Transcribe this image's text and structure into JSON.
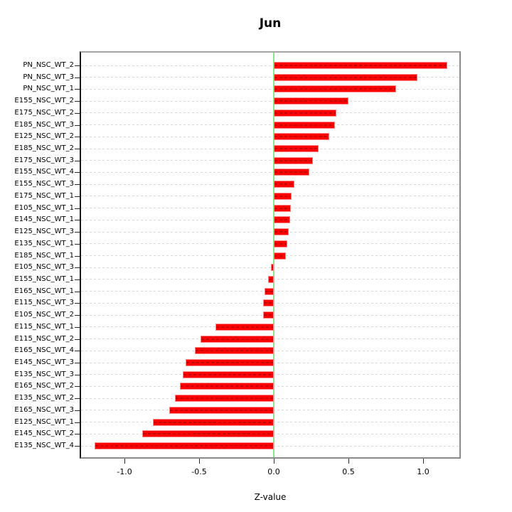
{
  "chart_data": {
    "type": "bar",
    "orientation": "horizontal",
    "title": "Jun",
    "xlabel": "Z-value",
    "ylabel": "",
    "xlim": [
      -1.3,
      1.25
    ],
    "xticks": [
      -1.0,
      -0.5,
      0.0,
      0.5,
      1.0
    ],
    "xtick_labels": [
      "-1.0",
      "-0.5",
      "0.0",
      "0.5",
      "1.0"
    ],
    "zero_line": 0.0,
    "grid": "dashed horizontal line per category",
    "legend": "none",
    "colors": {
      "bar_fill": "#ff0000",
      "bar_edge": "#ff8a8a",
      "zero_line": "#8ae88a",
      "grid_line": "#d9d9d9",
      "box": "#8a8a8a",
      "text": "#000000"
    },
    "categories": [
      "PN_NSC_WT_2",
      "PN_NSC_WT_3",
      "PN_NSC_WT_1",
      "E155_NSC_WT_2",
      "E175_NSC_WT_2",
      "E185_NSC_WT_3",
      "E125_NSC_WT_2",
      "E185_NSC_WT_2",
      "E175_NSC_WT_3",
      "E155_NSC_WT_4",
      "E155_NSC_WT_3",
      "E175_NSC_WT_1",
      "E105_NSC_WT_1",
      "E145_NSC_WT_1",
      "E125_NSC_WT_3",
      "E135_NSC_WT_1",
      "E185_NSC_WT_1",
      "E105_NSC_WT_3",
      "E155_NSC_WT_1",
      "E165_NSC_WT_1",
      "E115_NSC_WT_3",
      "E105_NSC_WT_2",
      "E115_NSC_WT_1",
      "E115_NSC_WT_2",
      "E165_NSC_WT_4",
      "E145_NSC_WT_3",
      "E135_NSC_WT_3",
      "E165_NSC_WT_2",
      "E135_NSC_WT_2",
      "E165_NSC_WT_3",
      "E125_NSC_WT_1",
      "E145_NSC_WT_2",
      "E135_NSC_WT_4"
    ],
    "values": [
      1.16,
      0.96,
      0.82,
      0.5,
      0.42,
      0.41,
      0.37,
      0.3,
      0.26,
      0.24,
      0.14,
      0.12,
      0.115,
      0.11,
      0.1,
      0.09,
      0.08,
      -0.02,
      -0.04,
      -0.06,
      -0.07,
      -0.07,
      -0.39,
      -0.49,
      -0.53,
      -0.59,
      -0.61,
      -0.63,
      -0.66,
      -0.7,
      -0.81,
      -0.88,
      -1.2
    ]
  }
}
